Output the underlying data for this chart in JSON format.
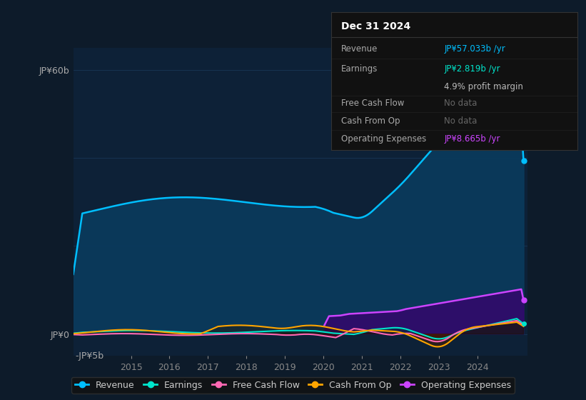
{
  "bg_color": "#0d1b2a",
  "plot_bg_color": "#0d2137",
  "title": "Dec 31 2024",
  "tooltip": {
    "Revenue": "JP¥57.033b /yr",
    "Earnings": "JP¥2.819b /yr",
    "profit_margin": "4.9% profit margin",
    "Free_Cash_Flow": "No data",
    "Cash_From_Op": "No data",
    "Operating_Expenses": "JP¥8.665b /yr"
  },
  "revenue_color": "#00bfff",
  "earnings_color": "#00e5cc",
  "fcf_color": "#ff69b4",
  "cashfromop_color": "#ffa500",
  "opex_color": "#cc44ff",
  "revenue_fill_color": "#0a3a5c",
  "ylim": [
    -5,
    65
  ],
  "legend": [
    "Revenue",
    "Earnings",
    "Free Cash Flow",
    "Cash From Op",
    "Operating Expenses"
  ],
  "legend_colors": [
    "#00bfff",
    "#00e5cc",
    "#ff69b4",
    "#ffa500",
    "#cc44ff"
  ]
}
